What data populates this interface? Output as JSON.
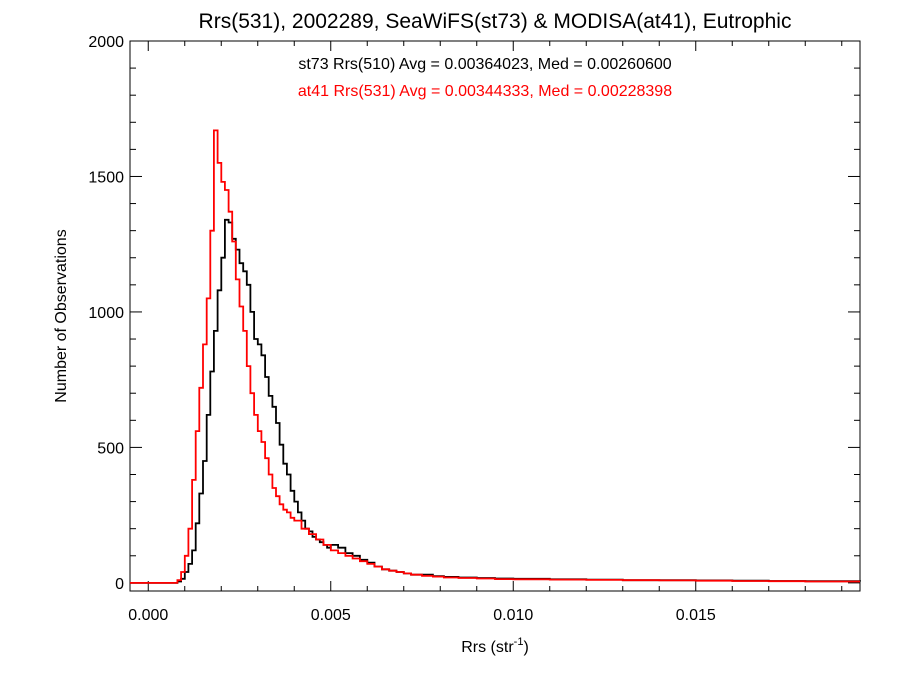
{
  "chart_data": {
    "type": "line",
    "title": "Rrs(531), 2002289, SeaWiFS(st73) & MODISA(at41), Eutrophic",
    "xlabel": "Rrs (str",
    "xlabel_sup": "-1",
    "xlabel_end": ")",
    "ylabel": "Number of Observations",
    "xlim": [
      -0.0005,
      0.0195
    ],
    "ylim": [
      -30,
      2000
    ],
    "xticks": [
      {
        "value": 0.0,
        "label": "0.000"
      },
      {
        "value": 0.005,
        "label": "0.005"
      },
      {
        "value": 0.01,
        "label": "0.010"
      },
      {
        "value": 0.015,
        "label": "0.015"
      }
    ],
    "yticks": [
      {
        "value": 0,
        "label": "0"
      },
      {
        "value": 500,
        "label": "500"
      },
      {
        "value": 1000,
        "label": "1000"
      },
      {
        "value": 1500,
        "label": "1500"
      },
      {
        "value": 2000,
        "label": "2000"
      }
    ],
    "annotations": [
      {
        "text": "st73 Rrs(510) Avg = 0.00364023, Med = 0.00260600",
        "color": "#000000"
      },
      {
        "text": "at41 Rrs(531) Avg = 0.00344333, Med = 0.00228398",
        "color": "#ff0000"
      }
    ],
    "series": [
      {
        "color": "#000000",
        "x": [
          -0.0005,
          0.0005,
          0.0008,
          0.0009,
          0.001,
          0.0011,
          0.0012,
          0.0013,
          0.0014,
          0.0015,
          0.0016,
          0.0017,
          0.0018,
          0.0019,
          0.002,
          0.0021,
          0.0022,
          0.0023,
          0.0024,
          0.0025,
          0.0026,
          0.0027,
          0.0028,
          0.0029,
          0.003,
          0.0031,
          0.0032,
          0.0033,
          0.0034,
          0.0035,
          0.0036,
          0.0037,
          0.0038,
          0.0039,
          0.004,
          0.0041,
          0.0042,
          0.0043,
          0.0044,
          0.0045,
          0.0046,
          0.0047,
          0.0048,
          0.0049,
          0.005,
          0.0052,
          0.0054,
          0.0056,
          0.0058,
          0.006,
          0.0062,
          0.0064,
          0.0066,
          0.0068,
          0.007,
          0.0072,
          0.0075,
          0.0078,
          0.0081,
          0.0085,
          0.009,
          0.0095,
          0.01,
          0.011,
          0.012,
          0.013,
          0.014,
          0.015,
          0.016,
          0.017,
          0.018,
          0.0195
        ],
        "values": [
          0,
          0,
          5,
          15,
          40,
          70,
          120,
          220,
          330,
          450,
          620,
          780,
          930,
          1080,
          1200,
          1340,
          1330,
          1270,
          1230,
          1180,
          1150,
          1100,
          1000,
          900,
          880,
          840,
          760,
          690,
          650,
          590,
          510,
          440,
          400,
          340,
          300,
          260,
          230,
          200,
          190,
          170,
          160,
          150,
          140,
          130,
          140,
          130,
          110,
          100,
          85,
          75,
          60,
          50,
          45,
          40,
          35,
          30,
          30,
          25,
          22,
          20,
          18,
          16,
          15,
          13,
          12,
          10,
          10,
          9,
          8,
          7,
          6,
          5
        ]
      },
      {
        "color": "#ff0000",
        "x": [
          -0.0005,
          0.0006,
          0.0008,
          0.0009,
          0.001,
          0.0011,
          0.0012,
          0.0013,
          0.0014,
          0.0015,
          0.0016,
          0.0017,
          0.0018,
          0.0019,
          0.002,
          0.0021,
          0.0022,
          0.0023,
          0.0024,
          0.0025,
          0.0026,
          0.0027,
          0.0028,
          0.0029,
          0.003,
          0.0031,
          0.0032,
          0.0033,
          0.0034,
          0.0035,
          0.0036,
          0.0037,
          0.0038,
          0.0039,
          0.004,
          0.0042,
          0.0044,
          0.0046,
          0.0048,
          0.005,
          0.0052,
          0.0054,
          0.0056,
          0.0058,
          0.006,
          0.0062,
          0.0064,
          0.0066,
          0.0068,
          0.007,
          0.0072,
          0.0075,
          0.0078,
          0.0081,
          0.0085,
          0.009,
          0.0095,
          0.01,
          0.011,
          0.012,
          0.013,
          0.014,
          0.015,
          0.016,
          0.017,
          0.018,
          0.0195
        ],
        "values": [
          0,
          0,
          10,
          40,
          100,
          200,
          380,
          560,
          720,
          880,
          1050,
          1300,
          1670,
          1550,
          1480,
          1450,
          1370,
          1260,
          1120,
          1020,
          930,
          800,
          700,
          620,
          560,
          520,
          460,
          400,
          350,
          320,
          290,
          270,
          260,
          240,
          230,
          200,
          180,
          160,
          140,
          120,
          110,
          100,
          90,
          80,
          70,
          60,
          50,
          45,
          40,
          35,
          30,
          26,
          23,
          20,
          18,
          16,
          14,
          13,
          12,
          11,
          10,
          9,
          8,
          7,
          6,
          5,
          5
        ]
      }
    ]
  }
}
